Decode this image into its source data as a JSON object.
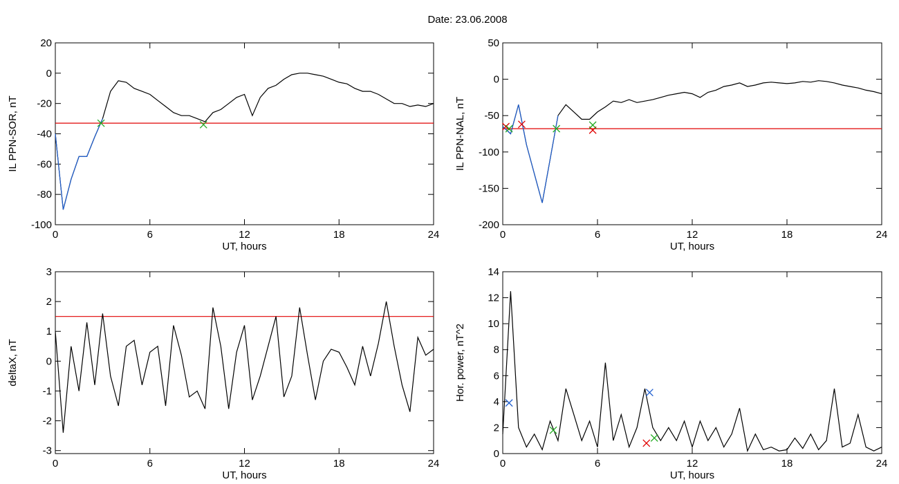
{
  "title": "Date:  23.06.2008",
  "chart_data": [
    {
      "type": "line",
      "ylabel": "IL PPN-SOR, nT",
      "xlabel": "UT, hours",
      "xlim": [
        0,
        24
      ],
      "xticks": [
        0,
        6,
        12,
        18,
        24
      ],
      "ylim": [
        -100,
        20
      ],
      "yticks": [
        -100,
        -80,
        -60,
        -40,
        -20,
        0,
        20
      ],
      "x": [
        0,
        0.5,
        1,
        1.5,
        2,
        2.5,
        3,
        3.5,
        4,
        4.5,
        5,
        5.5,
        6,
        6.5,
        7,
        7.5,
        8,
        8.5,
        9,
        9.5,
        10,
        10.5,
        11,
        11.5,
        12,
        12.5,
        13,
        13.5,
        14,
        14.5,
        15,
        15.5,
        16,
        16.5,
        17,
        17.5,
        18,
        18.5,
        19,
        19.5,
        20,
        20.5,
        21,
        21.5,
        22,
        22.5,
        23,
        23.5,
        24
      ],
      "series": [
        {
          "color": "#000000",
          "values": [
            -40,
            -90,
            -70,
            -55,
            -55,
            -42,
            -30,
            -12,
            -5,
            -6,
            -10,
            -12,
            -14,
            -18,
            -22,
            -26,
            -28,
            -28,
            -30,
            -32,
            -26,
            -24,
            -20,
            -16,
            -14,
            -28,
            -16,
            -10,
            -8,
            -4,
            -1,
            0,
            0,
            -1,
            -2,
            -4,
            -6,
            -7,
            -10,
            -12,
            -12,
            -14,
            -17,
            -20,
            -20,
            -22,
            -21,
            -22,
            -20
          ]
        },
        {
          "color": "#1f5fd0",
          "values": [
            -40,
            -90,
            -70,
            -55,
            -55,
            -42,
            -30,
            null,
            null,
            null,
            null,
            null,
            null,
            null,
            null,
            null,
            null,
            null,
            null,
            null,
            null,
            null,
            null,
            null,
            null,
            null,
            null,
            null,
            null,
            null,
            null,
            null,
            null,
            null,
            null,
            null,
            null,
            null,
            null,
            null,
            null,
            null,
            null,
            null,
            null,
            null,
            null,
            null,
            null
          ]
        }
      ],
      "threshold": -33,
      "threshold_color": "#e00000",
      "markers": [
        {
          "x": 2.9,
          "y": -33,
          "color": "#22aa22"
        },
        {
          "x": 9.4,
          "y": -34,
          "color": "#22aa22"
        }
      ]
    },
    {
      "type": "line",
      "ylabel": "IL PPN-NAL, nT",
      "xlabel": "UT, hours",
      "xlim": [
        0,
        24
      ],
      "xticks": [
        0,
        6,
        12,
        18,
        24
      ],
      "ylim": [
        -200,
        50
      ],
      "yticks": [
        -200,
        -150,
        -100,
        -50,
        0,
        50
      ],
      "x": [
        0,
        0.5,
        1,
        1.5,
        2,
        2.5,
        3,
        3.5,
        4,
        4.5,
        5,
        5.5,
        6,
        6.5,
        7,
        7.5,
        8,
        8.5,
        9,
        9.5,
        10,
        10.5,
        11,
        11.5,
        12,
        12.5,
        13,
        13.5,
        14,
        14.5,
        15,
        15.5,
        16,
        16.5,
        17,
        17.5,
        18,
        18.5,
        19,
        19.5,
        20,
        20.5,
        21,
        21.5,
        22,
        22.5,
        23,
        23.5,
        24
      ],
      "series": [
        {
          "color": "#000000",
          "values": [
            -65,
            -75,
            -35,
            -90,
            -130,
            -170,
            -110,
            -50,
            -35,
            -45,
            -55,
            -55,
            -45,
            -38,
            -30,
            -32,
            -28,
            -32,
            -30,
            -28,
            -25,
            -22,
            -20,
            -18,
            -20,
            -25,
            -18,
            -15,
            -10,
            -8,
            -5,
            -10,
            -8,
            -5,
            -4,
            -5,
            -6,
            -5,
            -3,
            -4,
            -2,
            -3,
            -5,
            -8,
            -10,
            -12,
            -15,
            -17,
            -20
          ]
        },
        {
          "color": "#1f5fd0",
          "values": [
            -65,
            -75,
            -35,
            -90,
            -130,
            -170,
            -110,
            -50,
            null,
            null,
            null,
            null,
            null,
            null,
            null,
            null,
            null,
            null,
            null,
            null,
            null,
            null,
            null,
            null,
            null,
            null,
            null,
            null,
            null,
            null,
            null,
            null,
            null,
            null,
            null,
            null,
            null,
            null,
            null,
            null,
            null,
            null,
            null,
            null,
            null,
            null,
            null,
            null,
            null
          ]
        }
      ],
      "threshold": -68,
      "threshold_color": "#e00000",
      "markers": [
        {
          "x": 0.2,
          "y": -65,
          "color": "#e00000"
        },
        {
          "x": 1.2,
          "y": -62,
          "color": "#e00000"
        },
        {
          "x": 5.7,
          "y": -70,
          "color": "#e00000"
        },
        {
          "x": 0.4,
          "y": -68,
          "color": "#22aa22"
        },
        {
          "x": 3.4,
          "y": -68,
          "color": "#22aa22"
        },
        {
          "x": 5.7,
          "y": -63,
          "color": "#22aa22"
        }
      ]
    },
    {
      "type": "line",
      "ylabel": "deltaX, nT",
      "xlabel": "UT, hours",
      "xlim": [
        0,
        24
      ],
      "xticks": [
        0,
        6,
        12,
        18,
        24
      ],
      "ylim": [
        -3.1,
        3
      ],
      "yticks": [
        -3,
        -2,
        -1,
        0,
        1,
        2,
        3
      ],
      "x": [
        0,
        0.5,
        1,
        1.5,
        2,
        2.5,
        3,
        3.5,
        4,
        4.5,
        5,
        5.5,
        6,
        6.5,
        7,
        7.5,
        8,
        8.5,
        9,
        9.5,
        10,
        10.5,
        11,
        11.5,
        12,
        12.5,
        13,
        13.5,
        14,
        14.5,
        15,
        15.5,
        16,
        16.5,
        17,
        17.5,
        18,
        18.5,
        19,
        19.5,
        20,
        20.5,
        21,
        21.5,
        22,
        22.5,
        23,
        23.5,
        24
      ],
      "series": [
        {
          "color": "#000000",
          "values": [
            1,
            -2.4,
            0.5,
            -1,
            1.3,
            -0.8,
            1.6,
            -0.5,
            -1.5,
            0.5,
            0.7,
            -0.8,
            0.3,
            0.5,
            -1.5,
            1.2,
            0.2,
            -1.2,
            -1,
            -1.6,
            1.8,
            0.5,
            -1.6,
            0.3,
            1.2,
            -1.3,
            -0.5,
            0.5,
            1.5,
            -1.2,
            -0.5,
            1.8,
            0.2,
            -1.3,
            0,
            0.4,
            0.3,
            -0.2,
            -0.8,
            0.5,
            -0.5,
            0.6,
            2,
            0.5,
            -0.8,
            -1.7,
            0.8,
            0.2,
            0.4
          ]
        }
      ],
      "threshold": 1.5,
      "threshold_color": "#e00000",
      "markers": []
    },
    {
      "type": "line",
      "ylabel": "Hor. power, nT^2",
      "xlabel": "UT, hours",
      "xlim": [
        0,
        24
      ],
      "xticks": [
        0,
        6,
        12,
        18,
        24
      ],
      "ylim": [
        0,
        14
      ],
      "yticks": [
        0,
        2,
        4,
        6,
        8,
        10,
        12,
        14
      ],
      "x": [
        0,
        0.5,
        1,
        1.5,
        2,
        2.5,
        3,
        3.5,
        4,
        4.5,
        5,
        5.5,
        6,
        6.5,
        7,
        7.5,
        8,
        8.5,
        9,
        9.5,
        10,
        10.5,
        11,
        11.5,
        12,
        12.5,
        13,
        13.5,
        14,
        14.5,
        15,
        15.5,
        16,
        16.5,
        17,
        17.5,
        18,
        18.5,
        19,
        19.5,
        20,
        20.5,
        21,
        21.5,
        22,
        22.5,
        23,
        23.5,
        24
      ],
      "series": [
        {
          "color": "#000000",
          "values": [
            1.5,
            12.5,
            2,
            0.5,
            1.5,
            0.3,
            2.5,
            1,
            5,
            3,
            1,
            2.5,
            0.5,
            7,
            1,
            3,
            0.5,
            2,
            5,
            2,
            1,
            2,
            1,
            2.5,
            0.5,
            2.5,
            1,
            2,
            0.5,
            1.5,
            3.5,
            0.2,
            1.5,
            0.3,
            0.5,
            0.2,
            0.3,
            1.2,
            0.4,
            1.5,
            0.3,
            1,
            5,
            0.5,
            0.8,
            3,
            0.5,
            0.2,
            0.5
          ]
        }
      ],
      "markers": [
        {
          "x": 0.4,
          "y": 3.9,
          "color": "#1f5fd0"
        },
        {
          "x": 9.3,
          "y": 4.7,
          "color": "#1f5fd0"
        },
        {
          "x": 9.1,
          "y": 0.8,
          "color": "#e00000"
        },
        {
          "x": 3.2,
          "y": 1.8,
          "color": "#22aa22"
        },
        {
          "x": 9.6,
          "y": 1.2,
          "color": "#22aa22"
        }
      ]
    }
  ]
}
